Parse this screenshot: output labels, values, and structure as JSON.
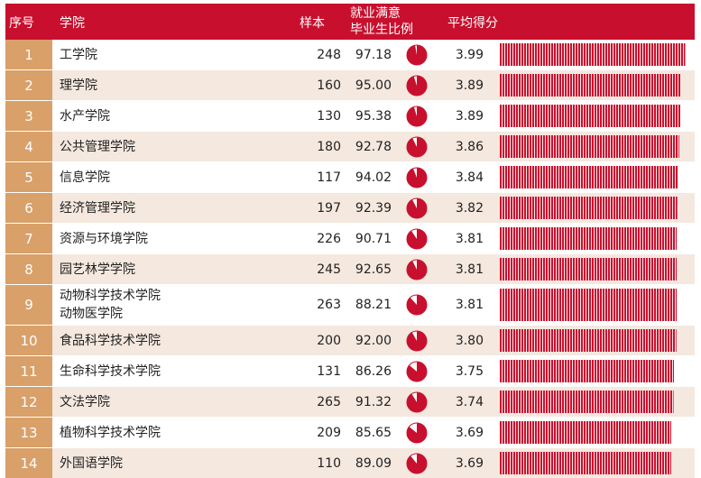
{
  "header": {
    "index": "序号",
    "college": "学院",
    "sample": "样本",
    "satisfaction_line1": "就业满意",
    "satisfaction_line2": "毕业生比例",
    "average": "平均得分"
  },
  "colors": {
    "header_bg": "#c8102e",
    "index_bg": "#d9a069",
    "alt_row_bg": "#f4e8df",
    "bar": "#c8102e"
  },
  "chart_data": {
    "type": "table",
    "columns": [
      "序号",
      "学院",
      "样本",
      "就业满意毕业生比例",
      "平均得分"
    ],
    "score_axis_range": [
      0,
      4
    ],
    "rows": [
      {
        "index": "1",
        "college": [
          "工学院"
        ],
        "sample": "248",
        "satisfaction": "97.18",
        "average": "3.99"
      },
      {
        "index": "2",
        "college": [
          "理学院"
        ],
        "sample": "160",
        "satisfaction": "95.00",
        "average": "3.89"
      },
      {
        "index": "3",
        "college": [
          "水产学院"
        ],
        "sample": "130",
        "satisfaction": "95.38",
        "average": "3.89"
      },
      {
        "index": "4",
        "college": [
          "公共管理学院"
        ],
        "sample": "180",
        "satisfaction": "92.78",
        "average": "3.86"
      },
      {
        "index": "5",
        "college": [
          "信息学院"
        ],
        "sample": "117",
        "satisfaction": "94.02",
        "average": "3.84"
      },
      {
        "index": "6",
        "college": [
          "经济管理学院"
        ],
        "sample": "197",
        "satisfaction": "92.39",
        "average": "3.82"
      },
      {
        "index": "7",
        "college": [
          "资源与环境学院"
        ],
        "sample": "226",
        "satisfaction": "90.71",
        "average": "3.81"
      },
      {
        "index": "8",
        "college": [
          "园艺林学学院"
        ],
        "sample": "245",
        "satisfaction": "92.65",
        "average": "3.81"
      },
      {
        "index": "9",
        "college": [
          "动物科学技术学院",
          "动物医学院"
        ],
        "sample": "263",
        "satisfaction": "88.21",
        "average": "3.81"
      },
      {
        "index": "10",
        "college": [
          "食品科学技术学院"
        ],
        "sample": "200",
        "satisfaction": "92.00",
        "average": "3.80"
      },
      {
        "index": "11",
        "college": [
          "生命科学技术学院"
        ],
        "sample": "131",
        "satisfaction": "86.26",
        "average": "3.75"
      },
      {
        "index": "12",
        "college": [
          "文法学院"
        ],
        "sample": "265",
        "satisfaction": "91.32",
        "average": "3.74"
      },
      {
        "index": "13",
        "college": [
          "植物科学技术学院"
        ],
        "sample": "209",
        "satisfaction": "85.65",
        "average": "3.69"
      },
      {
        "index": "14",
        "college": [
          "外国语学院"
        ],
        "sample": "110",
        "satisfaction": "89.09",
        "average": "3.69"
      }
    ]
  }
}
